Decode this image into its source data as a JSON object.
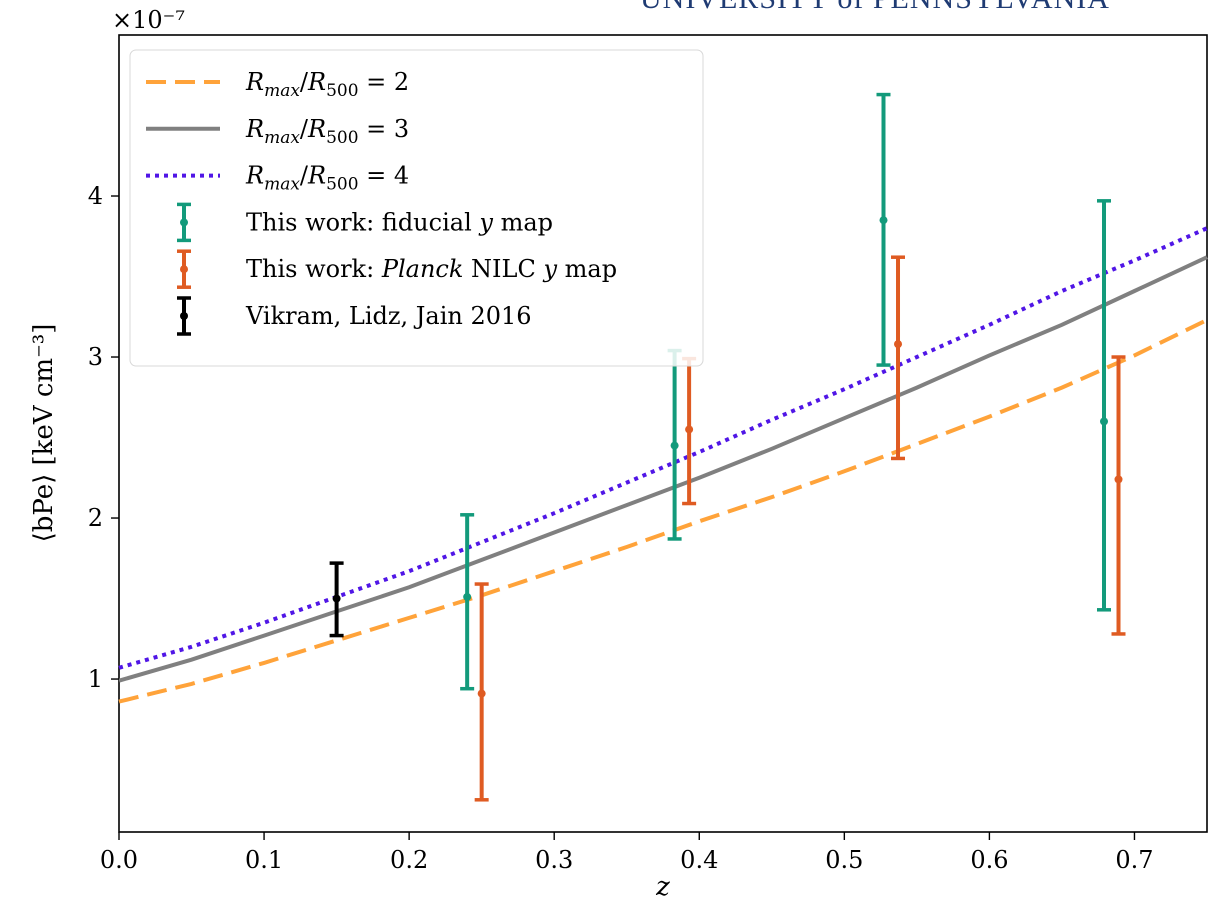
{
  "logo": {
    "text": "UNIVERSITY of PENNSYLVANIA",
    "color": "#1f3b73"
  },
  "chart_data": {
    "type": "line",
    "title": "",
    "xlabel": "z",
    "ylabel": "⟨bPe⟩ [keV cm⁻³]",
    "y_multiplier": "×10⁻⁷",
    "xlim": [
      0.0,
      0.75
    ],
    "ylim": [
      0.05,
      5.0
    ],
    "x_ticks": [
      "0.0",
      "0.1",
      "0.2",
      "0.3",
      "0.4",
      "0.5",
      "0.6",
      "0.7"
    ],
    "y_ticks": [
      "1",
      "2",
      "3",
      "4"
    ],
    "grid": false,
    "legend_placement": "top-left",
    "series": [
      {
        "name": "R_max/R_500 = 2",
        "style": "dashed",
        "color": "#ffa33a",
        "x": [
          0.0,
          0.05,
          0.1,
          0.15,
          0.2,
          0.25,
          0.3,
          0.35,
          0.4,
          0.45,
          0.5,
          0.55,
          0.6,
          0.65,
          0.7,
          0.75
        ],
        "y": [
          0.86,
          0.97,
          1.1,
          1.24,
          1.38,
          1.52,
          1.67,
          1.82,
          1.98,
          2.13,
          2.29,
          2.46,
          2.63,
          2.81,
          3.01,
          3.23
        ]
      },
      {
        "name": "R_max/R_500 = 3",
        "style": "solid",
        "color": "#808080",
        "x": [
          0.0,
          0.05,
          0.1,
          0.15,
          0.2,
          0.25,
          0.3,
          0.35,
          0.4,
          0.45,
          0.5,
          0.55,
          0.6,
          0.65,
          0.7,
          0.75
        ],
        "y": [
          0.99,
          1.12,
          1.27,
          1.42,
          1.57,
          1.74,
          1.91,
          2.08,
          2.25,
          2.43,
          2.62,
          2.81,
          3.01,
          3.2,
          3.41,
          3.62
        ]
      },
      {
        "name": "R_max/R_500 = 4",
        "style": "dotted",
        "color": "#5016e6",
        "x": [
          0.0,
          0.05,
          0.1,
          0.15,
          0.2,
          0.25,
          0.3,
          0.35,
          0.4,
          0.45,
          0.5,
          0.55,
          0.6,
          0.65,
          0.7,
          0.75
        ],
        "y": [
          1.07,
          1.2,
          1.35,
          1.51,
          1.67,
          1.85,
          2.03,
          2.22,
          2.41,
          2.61,
          2.8,
          3.0,
          3.2,
          3.41,
          3.6,
          3.8
        ]
      },
      {
        "name": "This work: fiducial y map",
        "style": "errorbar",
        "color": "#139a7b",
        "x": [
          0.24,
          0.383,
          0.527,
          0.679
        ],
        "y": [
          1.51,
          2.45,
          3.85,
          2.6
        ],
        "y_low": [
          0.94,
          1.87,
          2.95,
          1.43
        ],
        "y_high": [
          2.02,
          3.04,
          4.63,
          3.97
        ]
      },
      {
        "name": "This work: Planck NILC y map",
        "style": "errorbar",
        "color": "#df5b22",
        "x": [
          0.25,
          0.393,
          0.537,
          0.689
        ],
        "y": [
          0.91,
          2.55,
          3.08,
          2.24
        ],
        "y_low": [
          0.25,
          2.09,
          2.37,
          1.28
        ],
        "y_high": [
          1.59,
          2.99,
          3.62,
          3.0
        ]
      },
      {
        "name": "Vikram, Lidz, Jain 2016",
        "style": "errorbar",
        "color": "#000000",
        "x": [
          0.15
        ],
        "y": [
          1.5
        ],
        "y_low": [
          1.27
        ],
        "y_high": [
          1.72
        ]
      }
    ]
  }
}
